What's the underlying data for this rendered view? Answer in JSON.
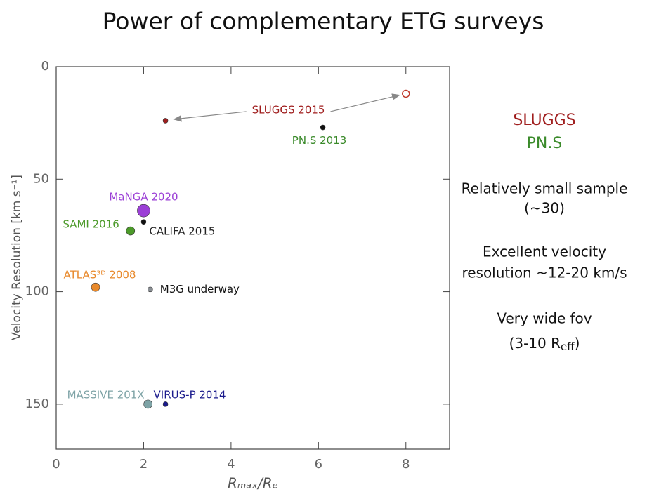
{
  "chart_data": {
    "type": "scatter",
    "title": "Power of complementary ETG surveys",
    "x_label": "Rₘₐₓ/Rₑ",
    "y_label": "Velocity Resolution [km s⁻¹]",
    "xlim": [
      0,
      9
    ],
    "ylim": [
      0,
      170
    ],
    "y_inverted": true,
    "xticks": [
      0,
      2,
      4,
      6,
      8
    ],
    "yticks": [
      0,
      50,
      100,
      150
    ],
    "series": [
      {
        "name": "SLUGGS 2015",
        "color": "#a01e1e",
        "marker": "small",
        "x": [
          2.5
        ],
        "y": [
          24
        ]
      },
      {
        "name": "SLUGGS 2015",
        "color": "#c0392b",
        "marker": "open",
        "x": [
          8
        ],
        "y": [
          12
        ]
      },
      {
        "name": "PN.S 2013",
        "color": "#111111",
        "marker": "small",
        "x": [
          6.1
        ],
        "y": [
          27
        ]
      },
      {
        "name": "MaNGA 2020",
        "color": "#9b3fd6",
        "marker": "large",
        "x": [
          2.0
        ],
        "y": [
          64
        ]
      },
      {
        "name": "CALIFA 2015",
        "color": "#111111",
        "marker": "small",
        "x": [
          2.0
        ],
        "y": [
          69
        ]
      },
      {
        "name": "SAMI 2016",
        "color": "#4c9a2a",
        "marker": "medium",
        "x": [
          1.7
        ],
        "y": [
          73
        ]
      },
      {
        "name": "ATLAS³ᴰ 2008",
        "color": "#e8892b",
        "marker": "medium",
        "x": [
          0.9
        ],
        "y": [
          98
        ]
      },
      {
        "name": "M3G underway",
        "color": "#8a8f94",
        "marker": "small",
        "x": [
          2.15
        ],
        "y": [
          99
        ]
      },
      {
        "name": "MASSIVE 201X",
        "color": "#7ea3a6",
        "marker": "medium",
        "x": [
          2.1
        ],
        "y": [
          150
        ]
      },
      {
        "name": "VIRUS-P 2014",
        "color": "#1a1a8c",
        "marker": "small",
        "x": [
          2.5
        ],
        "y": [
          150
        ]
      }
    ],
    "label_colors": [
      "#a01e1e",
      null,
      "#3a8a2a",
      "#9b3fd6",
      "#222222",
      "#4c9a2a",
      "#e8892b",
      "#111111",
      "#7ea3a6",
      "#1a1a8c"
    ],
    "notes": {
      "sluggs": "SLUGGS",
      "pns": "PN.S",
      "sample": [
        "Relatively small sample",
        "(~30)"
      ],
      "resolution": [
        "Excellent velocity",
        "resolution ~12-20 km/s"
      ],
      "fov": [
        "Very wide fov",
        [
          "(3-10 R",
          "eff",
          ")"
        ]
      ]
    }
  }
}
